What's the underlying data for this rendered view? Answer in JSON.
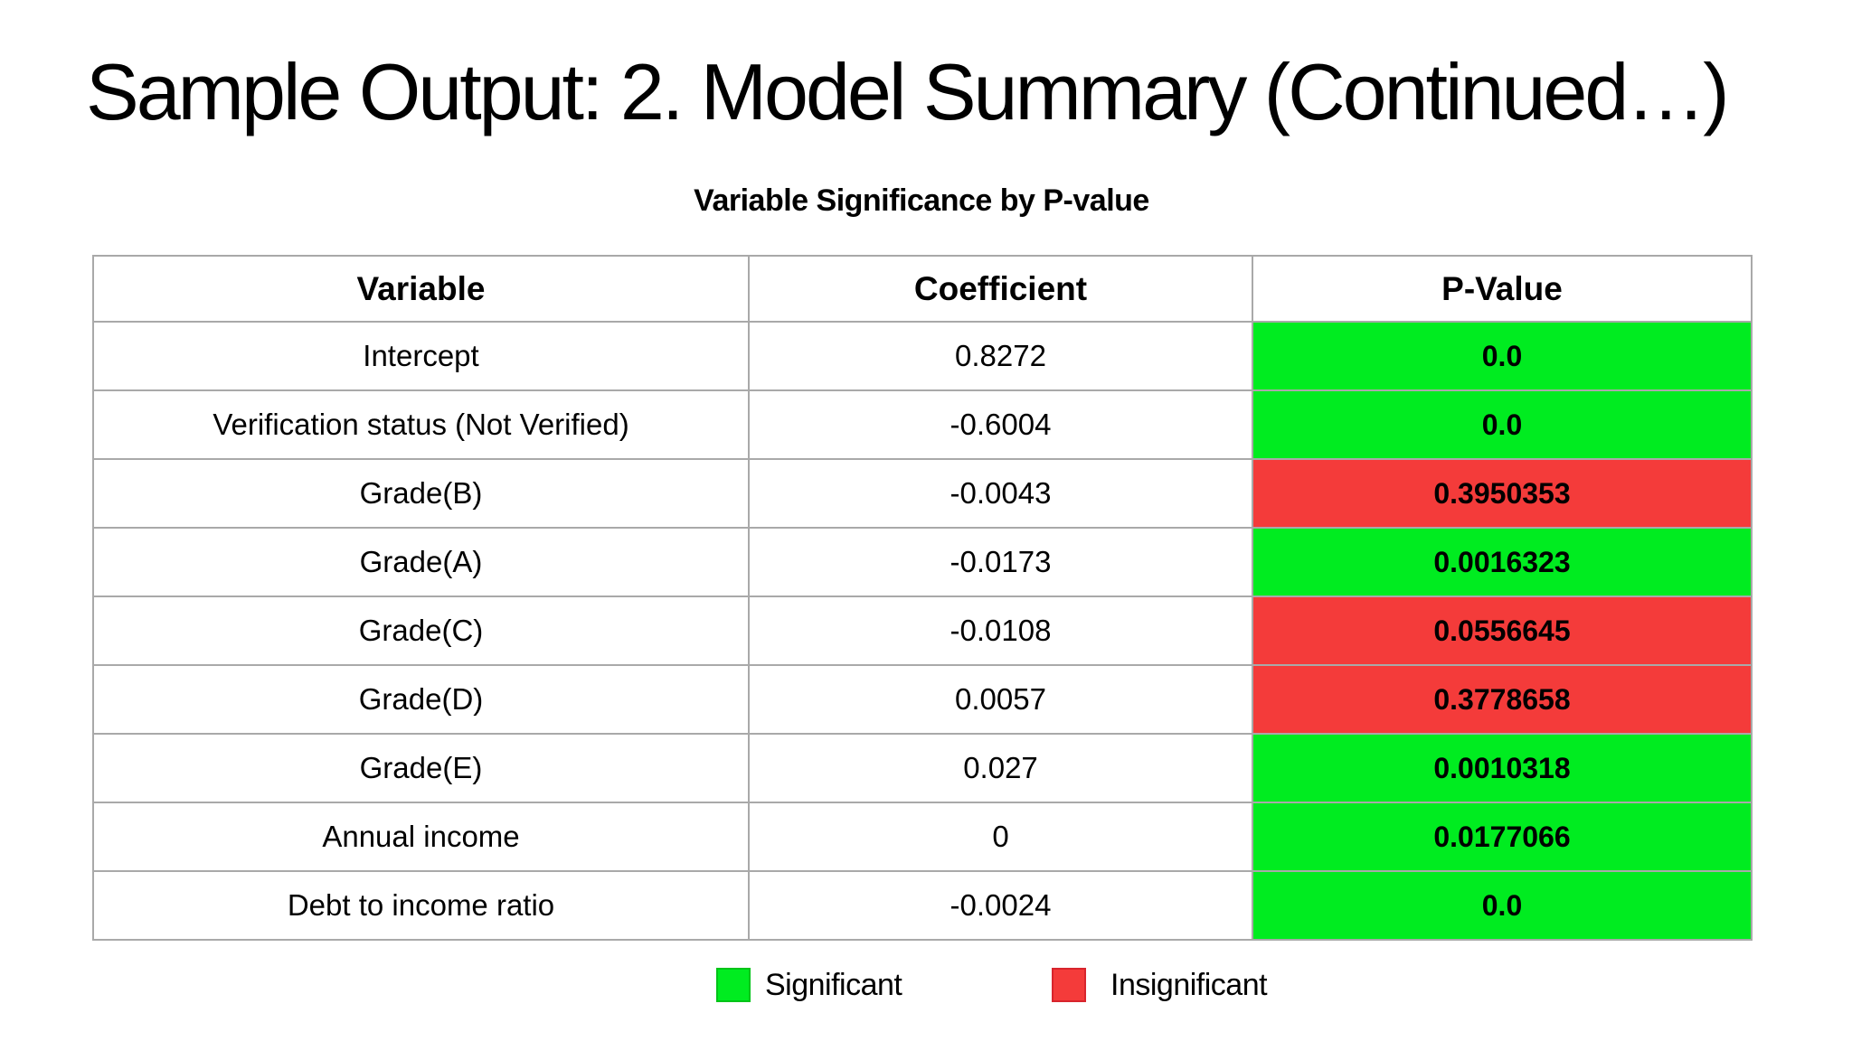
{
  "title": "Sample Output: 2. Model Summary (Continued…)",
  "table_title": "Variable Significance by P-value",
  "table": {
    "columns": [
      "Variable",
      "Coefficient",
      "P-Value"
    ],
    "rows": [
      {
        "variable": "Intercept",
        "coefficient": "0.8272",
        "p_value": "0.0",
        "significant": true
      },
      {
        "variable": "Verification status (Not Verified)",
        "coefficient": "-0.6004",
        "p_value": "0.0",
        "significant": true
      },
      {
        "variable": "Grade(B)",
        "coefficient": "-0.0043",
        "p_value": "0.3950353",
        "significant": false
      },
      {
        "variable": "Grade(A)",
        "coefficient": "-0.0173",
        "p_value": "0.0016323",
        "significant": true
      },
      {
        "variable": "Grade(C)",
        "coefficient": "-0.0108",
        "p_value": "0.0556645",
        "significant": false
      },
      {
        "variable": "Grade(D)",
        "coefficient": "0.0057",
        "p_value": "0.3778658",
        "significant": false
      },
      {
        "variable": "Grade(E)",
        "coefficient": "0.027",
        "p_value": "0.0010318",
        "significant": true
      },
      {
        "variable": "Annual income",
        "coefficient": "0",
        "p_value": "0.0177066",
        "significant": true
      },
      {
        "variable": "Debt to income ratio",
        "coefficient": "-0.0024",
        "p_value": "0.0",
        "significant": true
      }
    ]
  },
  "legend": {
    "significant_label": "Significant",
    "insignificant_label": "Insignificant"
  },
  "colors": {
    "significant_green": "#00EC20",
    "insignificant_red": "#F43B3A",
    "table_border": "#A9A9A9",
    "text": "#000000",
    "background": "#FFFFFF"
  }
}
